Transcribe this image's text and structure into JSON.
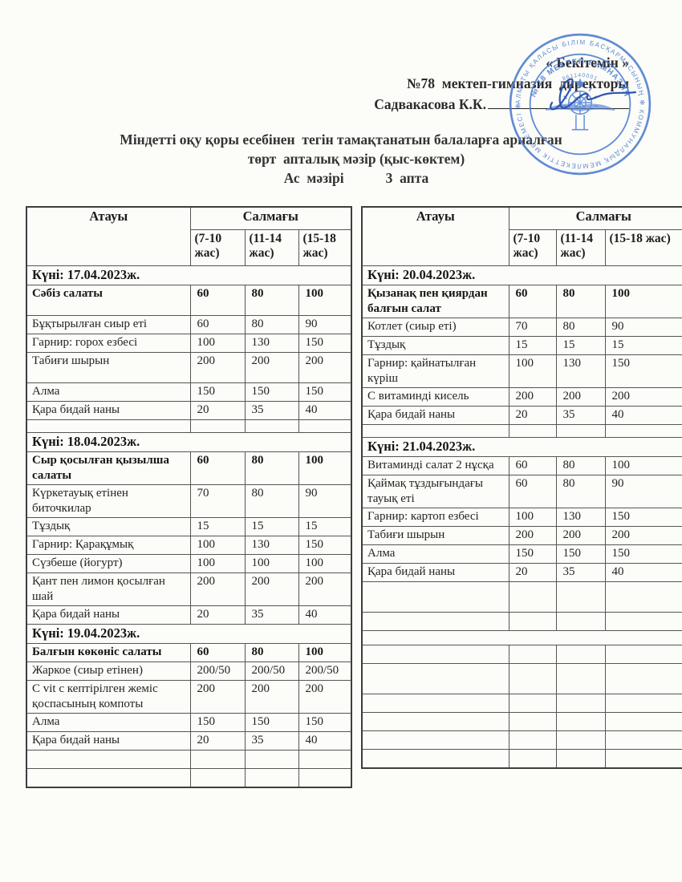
{
  "header": {
    "approval": "« Бекітемін »",
    "director_line": "№78  мектеп-гимназия  директоры",
    "signature_name": "Садвакасова К.К.",
    "title_line1": "Міндетті оқу қоры есебінен  тегін тамақтанатын балаларға арналған",
    "title_line2": "төрт  апталық мәзір (қыс-көктем)",
    "title_line3a": "Ас  мәзірі",
    "title_line3b": "3  апта"
  },
  "stamp": {
    "outer_text": "АЛМАТЫ ҚАЛАСЫ БІЛІМ БАСҚАРМАСЫНЫҢ ✻ КОММУНАЛДЫҚ МЕМЛЕКЕТТІК МЕКЕМЕСІ ✻",
    "inner_top": "№ 78 МЕКТЕП-ГИМНАЗИЯ",
    "number": "961140001",
    "color": "#4b7ccf"
  },
  "table_header": {
    "name_col": "Атауы",
    "weight_col": "Салмағы",
    "age_cols": [
      "(7-10 жас)",
      "(11-14 жас)",
      "(15-18 жас)"
    ]
  },
  "tables": {
    "left": {
      "sections": [
        {
          "date": "Күні: 17.04.2023ж.",
          "rows": [
            {
              "name": "Сәбіз салаты",
              "values": [
                "60",
                "80",
                "100"
              ],
              "bold": true,
              "tall": true
            },
            {
              "name": "Бұқтырылған сиыр еті",
              "values": [
                "60",
                "80",
                "90"
              ]
            },
            {
              "name": "Гарнир: горох езбесі",
              "values": [
                "100",
                "130",
                "150"
              ]
            },
            {
              "name": "Табиғи шырын",
              "values": [
                "200",
                "200",
                "200"
              ],
              "tall": true
            },
            {
              "name": "Алма",
              "values": [
                "150",
                "150",
                "150"
              ]
            },
            {
              "name": "Қара бидай наны",
              "values": [
                "20",
                "35",
                "40"
              ]
            },
            {
              "name": "",
              "values": [
                "",
                "",
                ""
              ],
              "spacer": true
            }
          ]
        },
        {
          "date": "Күні: 18.04.2023ж.",
          "rows": [
            {
              "name": "Сыр қосылған қызылша салаты",
              "values": [
                "60",
                "80",
                "100"
              ],
              "bold": true
            },
            {
              "name": "Күркетауық етінен биточкилар",
              "values": [
                "70",
                "80",
                "90"
              ]
            },
            {
              "name": "Тұздық",
              "values": [
                "15",
                "15",
                "15"
              ]
            },
            {
              "name": "Гарнир: Қарақұмық",
              "values": [
                "100",
                "130",
                "150"
              ]
            },
            {
              "name": "Сүзбеше (йогурт)",
              "values": [
                "100",
                "100",
                "100"
              ]
            },
            {
              "name": "Қант пен лимон қосылған шай",
              "values": [
                "200",
                "200",
                "200"
              ]
            },
            {
              "name": "Қара бидай наны",
              "values": [
                "20",
                "35",
                "40"
              ]
            }
          ]
        },
        {
          "date": "Күні: 19.04.2023ж.",
          "rows": [
            {
              "name": "Балғын көкөніс салаты",
              "values": [
                "60",
                "80",
                "100"
              ],
              "bold": true
            },
            {
              "name": "Жаркое (сиыр етінен)",
              "values": [
                "200/50",
                "200/50",
                "200/50"
              ]
            },
            {
              "name": "С vit с кептірілген жеміс қоспасының компоты",
              "values": [
                "200",
                "200",
                "200"
              ]
            },
            {
              "name": "Алма",
              "values": [
                "150",
                "150",
                "150"
              ]
            },
            {
              "name": "Қара бидай наны",
              "values": [
                "20",
                "35",
                "40"
              ]
            },
            {
              "name": "",
              "values": [
                "",
                "",
                ""
              ]
            },
            {
              "name": "",
              "values": [
                "",
                "",
                ""
              ]
            }
          ]
        }
      ]
    },
    "right": {
      "sections": [
        {
          "date": "Күні: 20.04.2023ж.",
          "rows": [
            {
              "name": "Қызанақ пен қиярдан балғын салат",
              "values": [
                "60",
                "80",
                "100"
              ],
              "bold": true
            },
            {
              "name": "Котлет (сиыр еті)",
              "values": [
                "70",
                "80",
                "90"
              ]
            },
            {
              "name": "Тұздық",
              "values": [
                "15",
                "15",
                "15"
              ]
            },
            {
              "name": "Гарнир: қайнатылған күріш",
              "values": [
                "100",
                "130",
                "150"
              ]
            },
            {
              "name": "С витаминді кисель",
              "values": [
                "200",
                "200",
                "200"
              ]
            },
            {
              "name": "Қара бидай наны",
              "values": [
                "20",
                "35",
                "40"
              ]
            },
            {
              "name": "",
              "values": [
                "",
                "",
                ""
              ],
              "spacer": true
            }
          ]
        },
        {
          "date": "Күні: 21.04.2023ж.",
          "rows": [
            {
              "name": "Витаминді салат 2 нұсқа",
              "values": [
                "60",
                "80",
                "100"
              ]
            },
            {
              "name": "Қаймақ тұздығындағы тауық еті",
              "values": [
                "60",
                "80",
                "90"
              ]
            },
            {
              "name": "Гарнир: картоп езбесі",
              "values": [
                "100",
                "130",
                "150"
              ]
            },
            {
              "name": "Табиғи шырын",
              "values": [
                "200",
                "200",
                "200"
              ]
            },
            {
              "name": "Алма",
              "values": [
                "150",
                "150",
                "150"
              ]
            },
            {
              "name": "Қара бидай наны",
              "values": [
                "20",
                "35",
                "40"
              ]
            },
            {
              "name": "",
              "values": [
                "",
                "",
                ""
              ],
              "tall": true
            },
            {
              "name": "",
              "values": [
                "",
                "",
                ""
              ]
            }
          ]
        },
        {
          "date": "",
          "rows": [
            {
              "name": "",
              "values": [
                "",
                "",
                ""
              ]
            },
            {
              "name": "",
              "values": [
                "",
                "",
                ""
              ],
              "tall": true
            },
            {
              "name": "",
              "values": [
                "",
                "",
                ""
              ]
            },
            {
              "name": "",
              "values": [
                "",
                "",
                ""
              ]
            },
            {
              "name": "",
              "values": [
                "",
                "",
                ""
              ]
            },
            {
              "name": "",
              "values": [
                "",
                "",
                ""
              ]
            }
          ]
        }
      ]
    }
  }
}
